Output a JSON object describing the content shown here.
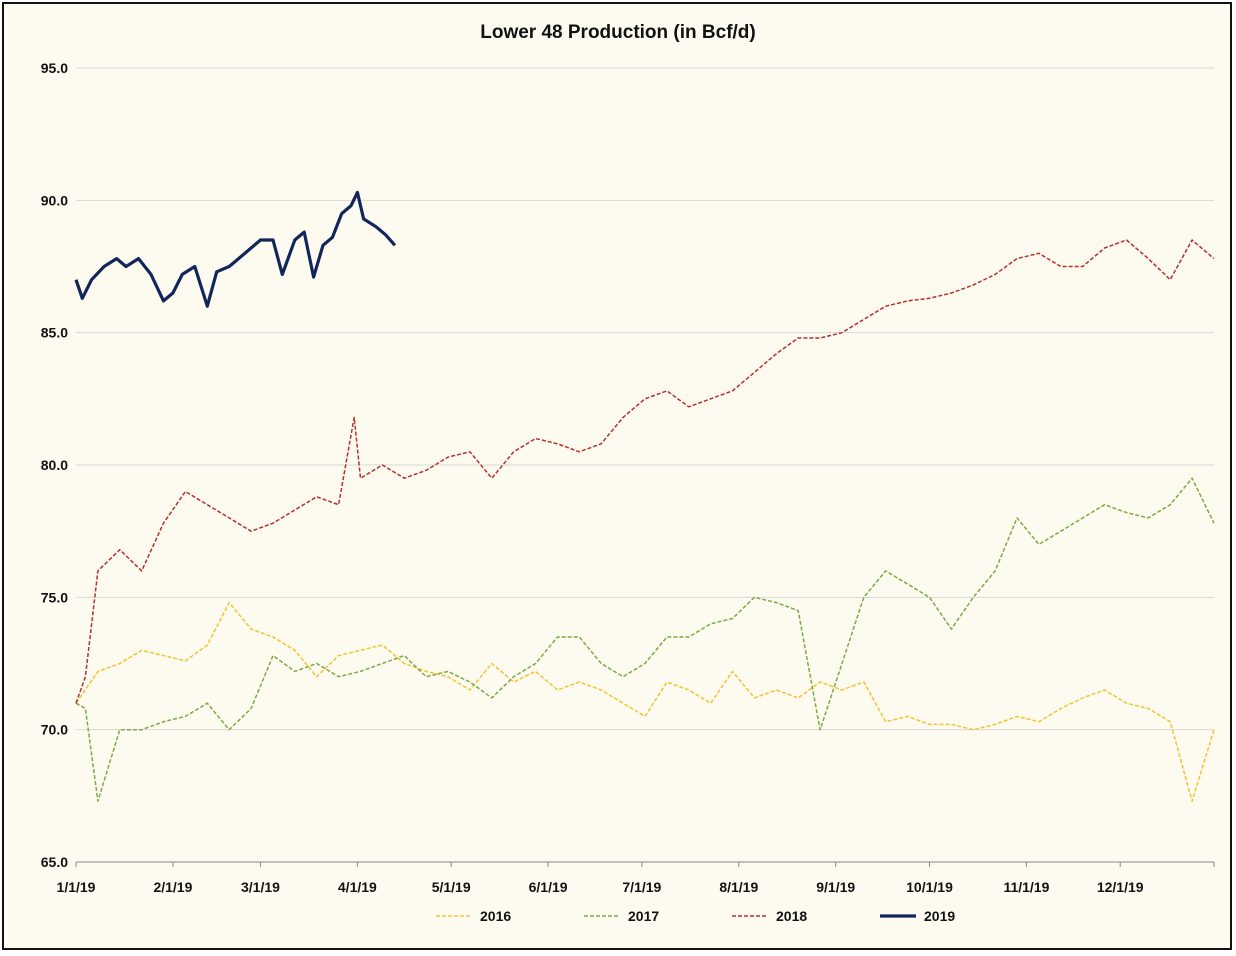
{
  "chart_data": {
    "type": "line",
    "title": "Lower 48 Production (in Bcf/d)",
    "xlabel": "",
    "ylabel": "",
    "ylim": [
      65,
      95
    ],
    "x_ticks": [
      "1/1/19",
      "2/1/19",
      "3/1/19",
      "4/1/19",
      "5/1/19",
      "6/1/19",
      "7/1/19",
      "8/1/19",
      "9/1/19",
      "10/1/19",
      "11/1/19",
      "12/1/19"
    ],
    "y_ticks": [
      "65.0",
      "70.0",
      "75.0",
      "80.0",
      "85.0",
      "90.0",
      "95.0"
    ],
    "grid": "horizontal",
    "legend": "bottom",
    "series": [
      {
        "name": "2016",
        "color": "#f2c231",
        "style": "dashed",
        "points": [
          [
            "1/1/19",
            71.0
          ],
          [
            "1/8/19",
            72.2
          ],
          [
            "1/15/19",
            72.5
          ],
          [
            "1/22/19",
            73.0
          ],
          [
            "1/29/19",
            72.8
          ],
          [
            "2/5/19",
            72.6
          ],
          [
            "2/12/19",
            73.2
          ],
          [
            "2/19/19",
            74.8
          ],
          [
            "2/26/19",
            73.8
          ],
          [
            "3/5/19",
            73.5
          ],
          [
            "3/12/19",
            73.0
          ],
          [
            "3/19/19",
            72.0
          ],
          [
            "3/26/19",
            72.8
          ],
          [
            "4/2/19",
            73.0
          ],
          [
            "4/9/19",
            73.2
          ],
          [
            "4/16/19",
            72.5
          ],
          [
            "4/23/19",
            72.2
          ],
          [
            "4/30/19",
            72.0
          ],
          [
            "5/7/19",
            71.5
          ],
          [
            "5/14/19",
            72.5
          ],
          [
            "5/21/19",
            71.8
          ],
          [
            "5/28/19",
            72.2
          ],
          [
            "6/4/19",
            71.5
          ],
          [
            "6/11/19",
            71.8
          ],
          [
            "6/18/19",
            71.5
          ],
          [
            "6/25/19",
            71.0
          ],
          [
            "7/2/19",
            70.5
          ],
          [
            "7/9/19",
            71.8
          ],
          [
            "7/16/19",
            71.5
          ],
          [
            "7/23/19",
            71.0
          ],
          [
            "7/30/19",
            72.2
          ],
          [
            "8/6/19",
            71.2
          ],
          [
            "8/13/19",
            71.5
          ],
          [
            "8/20/19",
            71.2
          ],
          [
            "8/27/19",
            71.8
          ],
          [
            "9/3/19",
            71.5
          ],
          [
            "9/10/19",
            71.8
          ],
          [
            "9/17/19",
            70.3
          ],
          [
            "9/24/19",
            70.5
          ],
          [
            "10/1/19",
            70.2
          ],
          [
            "10/8/19",
            70.2
          ],
          [
            "10/15/19",
            70.0
          ],
          [
            "10/22/19",
            70.2
          ],
          [
            "10/29/19",
            70.5
          ],
          [
            "11/5/19",
            70.3
          ],
          [
            "11/12/19",
            70.8
          ],
          [
            "11/19/19",
            71.2
          ],
          [
            "11/26/19",
            71.5
          ],
          [
            "12/3/19",
            71.0
          ],
          [
            "12/10/19",
            70.8
          ],
          [
            "12/17/19",
            70.3
          ],
          [
            "12/24/19",
            67.3
          ],
          [
            "12/31/19",
            70.0
          ]
        ]
      },
      {
        "name": "2017",
        "color": "#7ea845",
        "style": "dashed",
        "points": [
          [
            "1/1/19",
            71.0
          ],
          [
            "1/4/19",
            70.8
          ],
          [
            "1/8/19",
            67.3
          ],
          [
            "1/15/19",
            70.0
          ],
          [
            "1/22/19",
            70.0
          ],
          [
            "1/29/19",
            70.3
          ],
          [
            "2/5/19",
            70.5
          ],
          [
            "2/12/19",
            71.0
          ],
          [
            "2/19/19",
            70.0
          ],
          [
            "2/26/19",
            70.8
          ],
          [
            "3/5/19",
            72.8
          ],
          [
            "3/12/19",
            72.2
          ],
          [
            "3/19/19",
            72.5
          ],
          [
            "3/26/19",
            72.0
          ],
          [
            "4/2/19",
            72.2
          ],
          [
            "4/9/19",
            72.5
          ],
          [
            "4/16/19",
            72.8
          ],
          [
            "4/23/19",
            72.0
          ],
          [
            "4/30/19",
            72.2
          ],
          [
            "5/7/19",
            71.8
          ],
          [
            "5/14/19",
            71.2
          ],
          [
            "5/21/19",
            72.0
          ],
          [
            "5/28/19",
            72.5
          ],
          [
            "6/4/19",
            73.5
          ],
          [
            "6/11/19",
            73.5
          ],
          [
            "6/18/19",
            72.5
          ],
          [
            "6/25/19",
            72.0
          ],
          [
            "7/2/19",
            72.5
          ],
          [
            "7/9/19",
            73.5
          ],
          [
            "7/16/19",
            73.5
          ],
          [
            "7/23/19",
            74.0
          ],
          [
            "7/30/19",
            74.2
          ],
          [
            "8/6/19",
            75.0
          ],
          [
            "8/13/19",
            74.8
          ],
          [
            "8/20/19",
            74.5
          ],
          [
            "8/27/19",
            70.0
          ],
          [
            "9/3/19",
            72.5
          ],
          [
            "9/10/19",
            75.0
          ],
          [
            "9/17/19",
            76.0
          ],
          [
            "9/24/19",
            75.5
          ],
          [
            "10/1/19",
            75.0
          ],
          [
            "10/8/19",
            73.8
          ],
          [
            "10/15/19",
            75.0
          ],
          [
            "10/22/19",
            76.0
          ],
          [
            "10/29/19",
            78.0
          ],
          [
            "11/5/19",
            77.0
          ],
          [
            "11/12/19",
            77.5
          ],
          [
            "11/19/19",
            78.0
          ],
          [
            "11/26/19",
            78.5
          ],
          [
            "12/3/19",
            78.2
          ],
          [
            "12/10/19",
            78.0
          ],
          [
            "12/17/19",
            78.5
          ],
          [
            "12/24/19",
            79.5
          ],
          [
            "12/31/19",
            77.8
          ]
        ]
      },
      {
        "name": "2018",
        "color": "#b5302a",
        "style": "dashed",
        "points": [
          [
            "1/1/19",
            71.0
          ],
          [
            "1/4/19",
            72.0
          ],
          [
            "1/8/19",
            76.0
          ],
          [
            "1/15/19",
            76.8
          ],
          [
            "1/22/19",
            76.0
          ],
          [
            "1/29/19",
            77.8
          ],
          [
            "2/5/19",
            79.0
          ],
          [
            "2/12/19",
            78.5
          ],
          [
            "2/19/19",
            78.0
          ],
          [
            "2/26/19",
            77.5
          ],
          [
            "3/5/19",
            77.8
          ],
          [
            "3/12/19",
            78.3
          ],
          [
            "3/19/19",
            78.8
          ],
          [
            "3/26/19",
            78.5
          ],
          [
            "3/31/19",
            81.8
          ],
          [
            "4/2/19",
            79.5
          ],
          [
            "4/9/19",
            80.0
          ],
          [
            "4/16/19",
            79.5
          ],
          [
            "4/23/19",
            79.8
          ],
          [
            "4/30/19",
            80.3
          ],
          [
            "5/7/19",
            80.5
          ],
          [
            "5/14/19",
            79.5
          ],
          [
            "5/21/19",
            80.5
          ],
          [
            "5/28/19",
            81.0
          ],
          [
            "6/4/19",
            80.8
          ],
          [
            "6/11/19",
            80.5
          ],
          [
            "6/18/19",
            80.8
          ],
          [
            "6/25/19",
            81.8
          ],
          [
            "7/2/19",
            82.5
          ],
          [
            "7/9/19",
            82.8
          ],
          [
            "7/16/19",
            82.2
          ],
          [
            "7/23/19",
            82.5
          ],
          [
            "7/30/19",
            82.8
          ],
          [
            "8/6/19",
            83.5
          ],
          [
            "8/13/19",
            84.2
          ],
          [
            "8/20/19",
            84.8
          ],
          [
            "8/27/19",
            84.8
          ],
          [
            "9/3/19",
            85.0
          ],
          [
            "9/10/19",
            85.5
          ],
          [
            "9/17/19",
            86.0
          ],
          [
            "9/24/19",
            86.2
          ],
          [
            "10/1/19",
            86.3
          ],
          [
            "10/8/19",
            86.5
          ],
          [
            "10/15/19",
            86.8
          ],
          [
            "10/22/19",
            87.2
          ],
          [
            "10/29/19",
            87.8
          ],
          [
            "11/5/19",
            88.0
          ],
          [
            "11/12/19",
            87.5
          ],
          [
            "11/19/19",
            87.5
          ],
          [
            "11/26/19",
            88.2
          ],
          [
            "12/3/19",
            88.5
          ],
          [
            "12/10/19",
            87.8
          ],
          [
            "12/17/19",
            87.0
          ],
          [
            "12/24/19",
            88.5
          ],
          [
            "12/31/19",
            87.8
          ]
        ]
      },
      {
        "name": "2019",
        "color": "#13265a",
        "style": "solid",
        "points": [
          [
            "1/1/19",
            87.0
          ],
          [
            "1/3/19",
            86.3
          ],
          [
            "1/6/19",
            87.0
          ],
          [
            "1/10/19",
            87.5
          ],
          [
            "1/14/19",
            87.8
          ],
          [
            "1/17/19",
            87.5
          ],
          [
            "1/21/19",
            87.8
          ],
          [
            "1/25/19",
            87.2
          ],
          [
            "1/29/19",
            86.2
          ],
          [
            "2/1/19",
            86.5
          ],
          [
            "2/4/19",
            87.2
          ],
          [
            "2/8/19",
            87.5
          ],
          [
            "2/12/19",
            86.0
          ],
          [
            "2/15/19",
            87.3
          ],
          [
            "2/19/19",
            87.5
          ],
          [
            "2/22/19",
            87.8
          ],
          [
            "2/26/19",
            88.2
          ],
          [
            "3/1/19",
            88.5
          ],
          [
            "3/5/19",
            88.5
          ],
          [
            "3/8/19",
            87.2
          ],
          [
            "3/12/19",
            88.5
          ],
          [
            "3/15/19",
            88.8
          ],
          [
            "3/18/19",
            87.1
          ],
          [
            "3/21/19",
            88.3
          ],
          [
            "3/24/19",
            88.6
          ],
          [
            "3/27/19",
            89.5
          ],
          [
            "3/30/19",
            89.8
          ],
          [
            "4/1/19",
            90.3
          ],
          [
            "4/3/19",
            89.3
          ],
          [
            "4/7/19",
            89.0
          ],
          [
            "4/10/19",
            88.7
          ],
          [
            "4/13/19",
            88.3
          ]
        ]
      }
    ]
  }
}
